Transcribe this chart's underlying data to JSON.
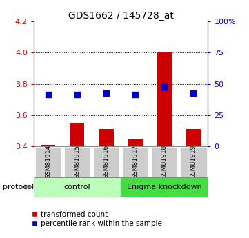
{
  "title": "GDS1662 / 145728_at",
  "samples": [
    "GSM81914",
    "GSM81915",
    "GSM81916",
    "GSM81917",
    "GSM81918",
    "GSM81919"
  ],
  "bar_values": [
    3.41,
    3.55,
    3.51,
    3.45,
    4.0,
    3.51
  ],
  "blue_dot_values": [
    3.73,
    3.73,
    3.74,
    3.73,
    3.78,
    3.74
  ],
  "ylim_left": [
    3.4,
    4.2
  ],
  "ylim_right": [
    0,
    100
  ],
  "yticks_left": [
    3.4,
    3.6,
    3.8,
    4.0,
    4.2
  ],
  "yticks_right": [
    0,
    25,
    50,
    75,
    100
  ],
  "ytick_labels_right": [
    "0",
    "25",
    "50",
    "75",
    "100%"
  ],
  "bar_color": "#cc0000",
  "dot_color": "#0000cc",
  "control_samples": [
    0,
    1,
    2
  ],
  "knockdown_samples": [
    3,
    4,
    5
  ],
  "control_label": "control",
  "knockdown_label": "Enigma knockdown",
  "protocol_label": "protocol",
  "legend_bar": "transformed count",
  "legend_dot": "percentile rank within the sample",
  "ctrl_color": "#bbffbb",
  "kd_color": "#44dd44",
  "sample_box_color": "#cccccc",
  "bar_width": 0.5,
  "dot_size": 35,
  "title_fontsize": 10,
  "tick_fontsize": 8,
  "grid_dotted_vals": [
    3.6,
    3.8,
    4.0
  ]
}
